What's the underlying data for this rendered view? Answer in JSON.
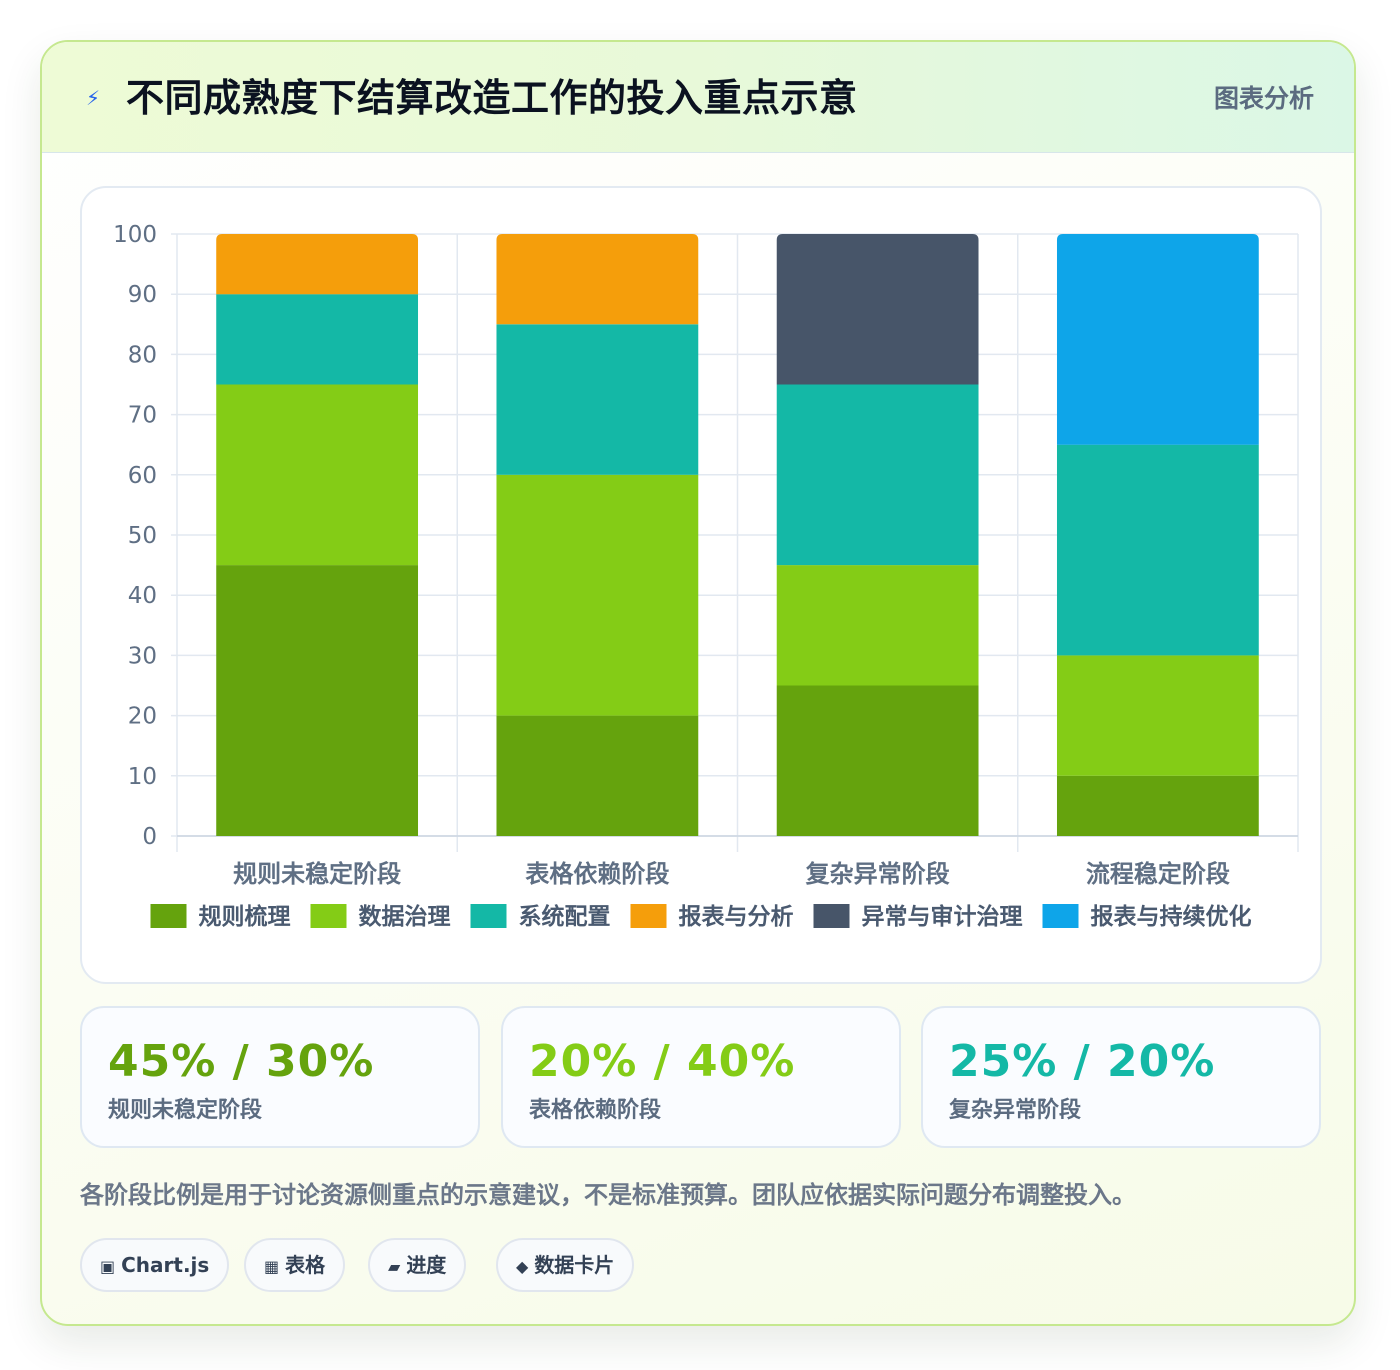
{
  "header": {
    "icon": "lightning-icon",
    "title": "不同成熟度下结算改造工作的投入重点示意",
    "tag": "图表分析"
  },
  "chart_data": {
    "type": "bar",
    "stacked": true,
    "categories": [
      "规则未稳定阶段",
      "表格依赖阶段",
      "复杂异常阶段",
      "流程稳定阶段"
    ],
    "series": [
      {
        "name": "规则梳理",
        "color": "#65a30d",
        "values": [
          45,
          20,
          25,
          10
        ]
      },
      {
        "name": "数据治理",
        "color": "#84cc16",
        "values": [
          30,
          40,
          20,
          20
        ]
      },
      {
        "name": "系统配置",
        "color": "#14b8a6",
        "values": [
          15,
          25,
          30,
          35
        ]
      },
      {
        "name": "报表与分析",
        "color": "#f59e0b",
        "values": [
          10,
          15,
          0,
          0
        ]
      },
      {
        "name": "异常与审计治理",
        "color": "#475569",
        "values": [
          0,
          0,
          25,
          0
        ]
      },
      {
        "name": "报表与持续优化",
        "color": "#0ea5e9",
        "values": [
          0,
          0,
          0,
          35
        ]
      }
    ],
    "ylim": [
      0,
      100
    ],
    "yticks": [
      0,
      10,
      20,
      30,
      40,
      50,
      60,
      70,
      80,
      90,
      100
    ],
    "grid": true,
    "legend_position": "bottom"
  },
  "stats": [
    {
      "value": "45% / 30%",
      "label": "规则未稳定阶段",
      "color": "#65a30d"
    },
    {
      "value": "20% / 40%",
      "label": "表格依赖阶段",
      "color": "#84cc16"
    },
    {
      "value": "25% / 20%",
      "label": "复杂异常阶段",
      "color": "#14b8a6"
    }
  ],
  "note": "各阶段比例是用于讨论资源侧重点的示意建议，不是标准预算。团队应依据实际问题分布调整投入。",
  "pills": [
    {
      "icon": "chart-icon",
      "glyph": "▣",
      "label": "Chart.js"
    },
    {
      "icon": "table-icon",
      "glyph": "▦",
      "label": "表格"
    },
    {
      "icon": "progress-icon",
      "glyph": "▰",
      "label": "进度"
    },
    {
      "icon": "data-card-icon",
      "glyph": "◆",
      "label": "数据卡片"
    }
  ]
}
